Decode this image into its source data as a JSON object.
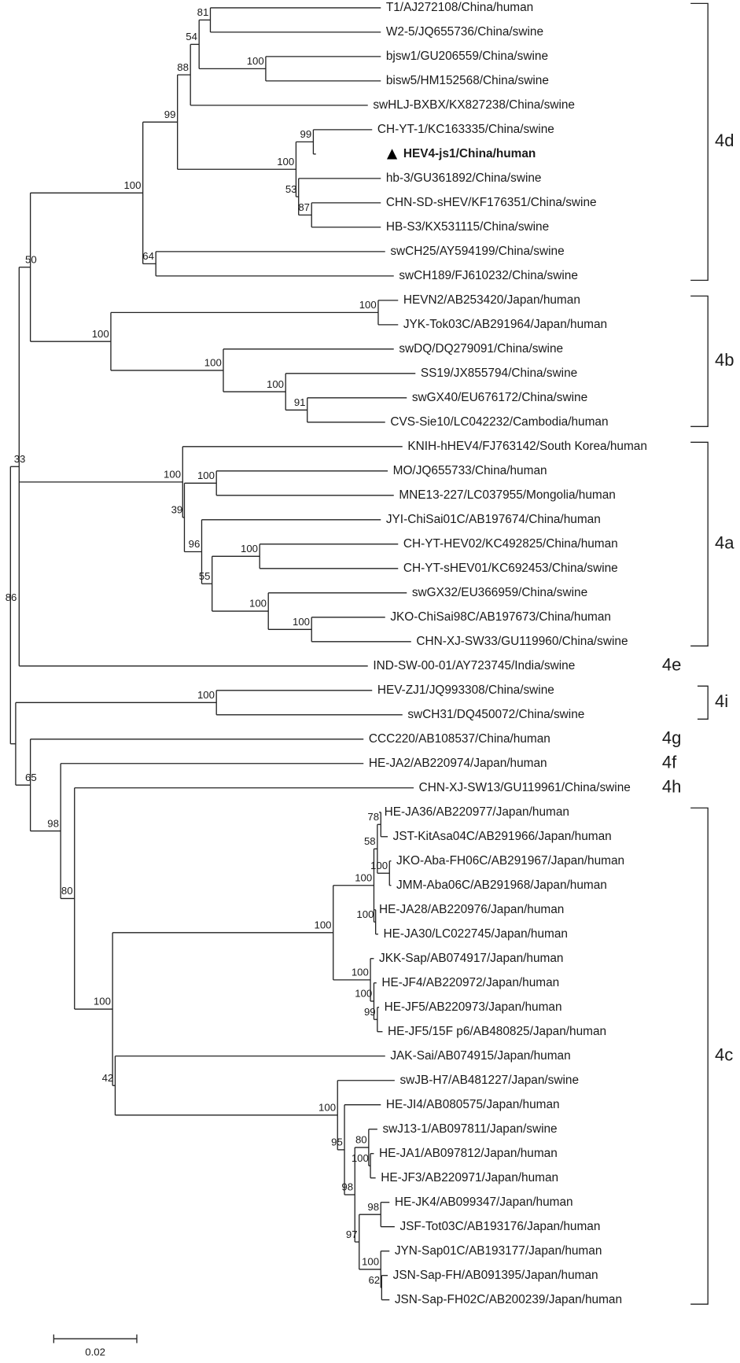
{
  "tree": {
    "leaves": [
      "T1/AJ272108/China/human",
      "W2-5/JQ655736/China/swine",
      "bjsw1/GU206559/China/swine",
      "bisw5/HM152568/China/swine",
      "swHLJ-BXBX/KX827238/China/swine",
      "CH-YT-1/KC163335/China/swine",
      "HEV4-js1/China/human",
      "hb-3/GU361892/China/swine",
      "CHN-SD-sHEV/KF176351/China/swine",
      "HB-S3/KX531115/China/swine",
      "swCH25/AY594199/China/swine",
      "swCH189/FJ610232/China/swine",
      "HEVN2/AB253420/Japan/human",
      "JYK-Tok03C/AB291964/Japan/human",
      "swDQ/DQ279091/China/swine",
      "SS19/JX855794/China/swine",
      "swGX40/EU676172/China/swine",
      "CVS-Sie10/LC042232/Cambodia/human",
      "KNIH-hHEV4/FJ763142/South Korea/human",
      "MO/JQ655733/China/human",
      "MNE13-227/LC037955/Mongolia/human",
      "JYI-ChiSai01C/AB197674/China/human",
      "CH-YT-HEV02/KC492825/China/human",
      "CH-YT-sHEV01/KC692453/China/swine",
      "swGX32/EU366959/China/swine",
      "JKO-ChiSai98C/AB197673/China/human",
      "CHN-XJ-SW33/GU119960/China/swine",
      "IND-SW-00-01/AY723745/India/swine",
      "HEV-ZJ1/JQ993308/China/swine",
      "swCH31/DQ450072/China/swine",
      "CCC220/AB108537/China/human",
      "HE-JA2/AB220974/Japan/human",
      "CHN-XJ-SW13/GU119961/China/swine",
      "HE-JA36/AB220977/Japan/human",
      "JST-KitAsa04C/AB291966/Japan/human",
      "JKO-Aba-FH06C/AB291967/Japan/human",
      "JMM-Aba06C/AB291968/Japan/human",
      "HE-JA28/AB220976/Japan/human",
      "HE-JA30/LC022745/Japan/human",
      "JKK-Sap/AB074917/Japan/human",
      "HE-JF4/AB220972/Japan/human",
      "HE-JF5/AB220973/Japan/human",
      "HE-JF5/15F p6/AB480825/Japan/human",
      "JAK-Sai/AB074915/Japan/human",
      "swJB-H7/AB481227/Japan/swine",
      "HE-JI4/AB080575/Japan/human",
      "swJ13-1/AB097811/Japan/swine",
      "HE-JA1/AB097812/Japan/human",
      "HE-JF3/AB220971/Japan/human",
      "HE-JK4/AB099347/Japan/human",
      "JSF-Tot03C/AB193176/Japan/human",
      "JYN-Sap01C/AB193177/Japan/human",
      "JSN-Sap-FH/AB091395/Japan/human",
      "JSN-Sap-FH02C/AB200239/Japan/human"
    ],
    "bootstrap_values": [
      86,
      33,
      50,
      100,
      99,
      88,
      54,
      81,
      100,
      100,
      99,
      53,
      87,
      64,
      100,
      100,
      100,
      100,
      91,
      100,
      39,
      100,
      96,
      55,
      100,
      100,
      100,
      100,
      65,
      98,
      80,
      100,
      100,
      100,
      58,
      78,
      100,
      100,
      100,
      100,
      99,
      42,
      100,
      95,
      98,
      80,
      100,
      97,
      98,
      100,
      62
    ],
    "clades": [
      "4d",
      "4b",
      "4a",
      "4e",
      "4i",
      "4g",
      "4f",
      "4h",
      "4c"
    ],
    "scale_bar": "0.02"
  }
}
